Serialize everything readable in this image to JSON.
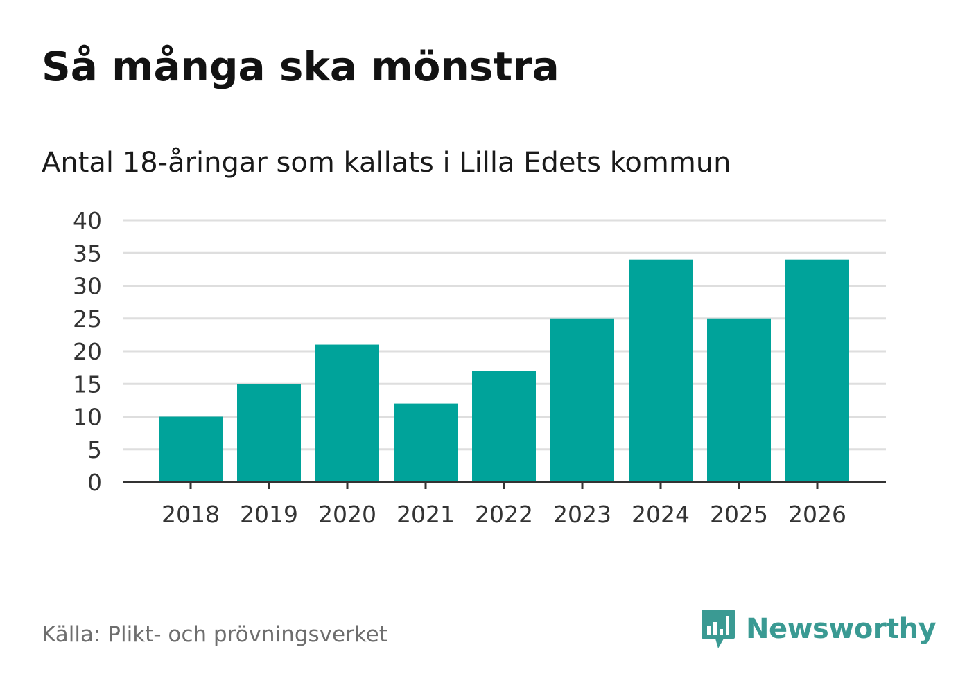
{
  "header": {
    "title": "Så många ska mönstra",
    "subtitle": "Antal 18-åringar som kallats i Lilla Edets kommun"
  },
  "footer": {
    "source": "Källa: Plikt- och prövningsverket",
    "brand": "Newsworthy",
    "brand_icon": "newsworthy-logo-icon"
  },
  "colors": {
    "bar": "#00a39a",
    "grid": "#dedede",
    "axis": "#333333",
    "brand": "#3a9a93"
  },
  "chart_data": {
    "type": "bar",
    "title": "Så många ska mönstra",
    "subtitle": "Antal 18-åringar som kallats i Lilla Edets kommun",
    "categories": [
      "2018",
      "2019",
      "2020",
      "2021",
      "2022",
      "2023",
      "2024",
      "2025",
      "2026"
    ],
    "values": [
      10,
      15,
      21,
      12,
      17,
      25,
      34,
      25,
      34
    ],
    "yticks": [
      "0",
      "5",
      "10",
      "15",
      "20",
      "25",
      "30",
      "35",
      "40"
    ],
    "ylim": [
      0,
      40
    ],
    "xlabel": "",
    "ylabel": "",
    "grid": true,
    "legend": "none"
  }
}
